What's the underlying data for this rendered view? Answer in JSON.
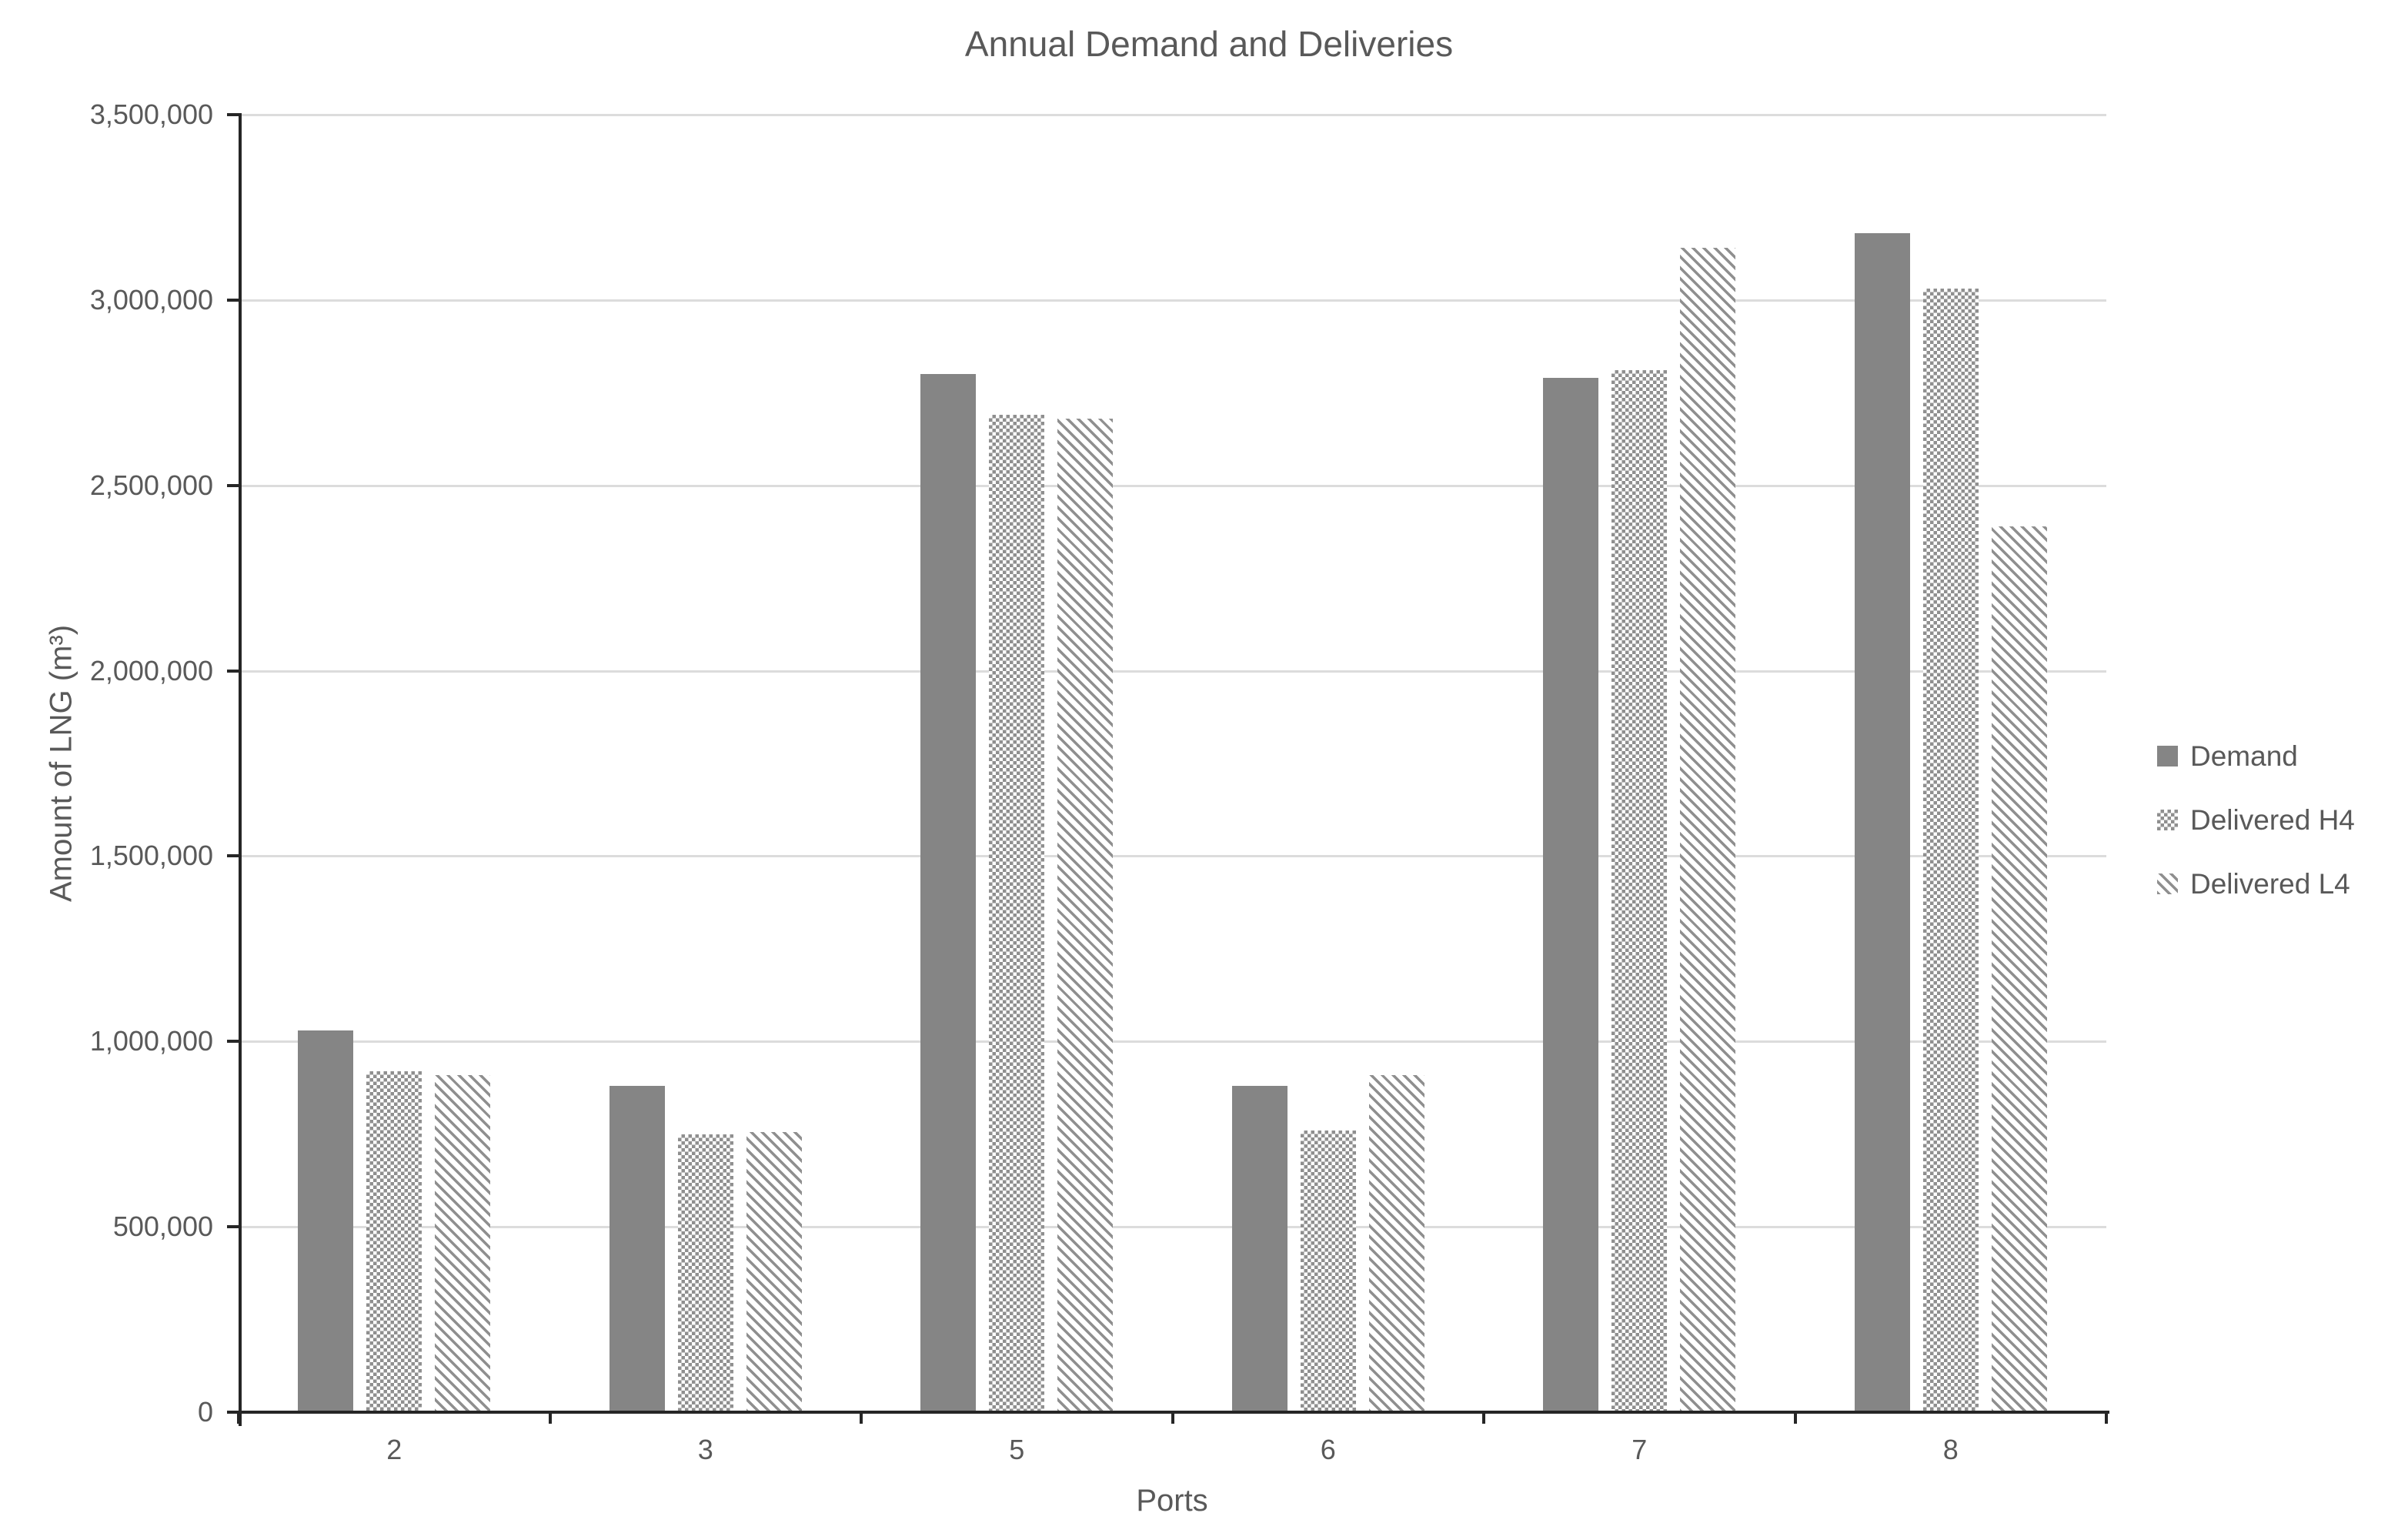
{
  "title": "Annual Demand and Deliveries",
  "y_axis": {
    "label": "Amount of LNG (m³)",
    "tick_labels": [
      "0",
      "500,000",
      "1,000,000",
      "1,500,000",
      "2,000,000",
      "2,500,000",
      "3,000,000",
      "3,500,000"
    ]
  },
  "x_axis": {
    "label": "Ports",
    "categories": [
      "2",
      "3",
      "5",
      "6",
      "7",
      "8"
    ]
  },
  "legend": {
    "items": [
      {
        "label": "Demand",
        "pattern": "solid"
      },
      {
        "label": "Delivered H4",
        "pattern": "checker"
      },
      {
        "label": "Delivered L4",
        "pattern": "diagonal"
      }
    ]
  },
  "colors": {
    "bar_solid": "#858585",
    "bar_pattern": "#8f8f8f",
    "text": "#595959",
    "gridline": "#dcdcdc",
    "axis_line": "#262626",
    "background": "#ffffff"
  },
  "chart_data": {
    "type": "bar",
    "title": "Annual Demand and Deliveries",
    "xlabel": "Ports",
    "ylabel": "Amount of LNG (m³)",
    "ylim": [
      0,
      3500000
    ],
    "ytick_step": 500000,
    "grid": true,
    "legend_position": "right",
    "categories": [
      "2",
      "3",
      "5",
      "6",
      "7",
      "8"
    ],
    "series": [
      {
        "name": "Demand",
        "pattern": "solid",
        "values": [
          1030000,
          880000,
          2800000,
          880000,
          2790000,
          3180000
        ]
      },
      {
        "name": "Delivered H4",
        "pattern": "checker",
        "values": [
          920000,
          750000,
          2690000,
          760000,
          2810000,
          3030000
        ]
      },
      {
        "name": "Delivered L4",
        "pattern": "diagonal",
        "values": [
          910000,
          755000,
          2680000,
          910000,
          3140000,
          2390000
        ]
      }
    ]
  }
}
